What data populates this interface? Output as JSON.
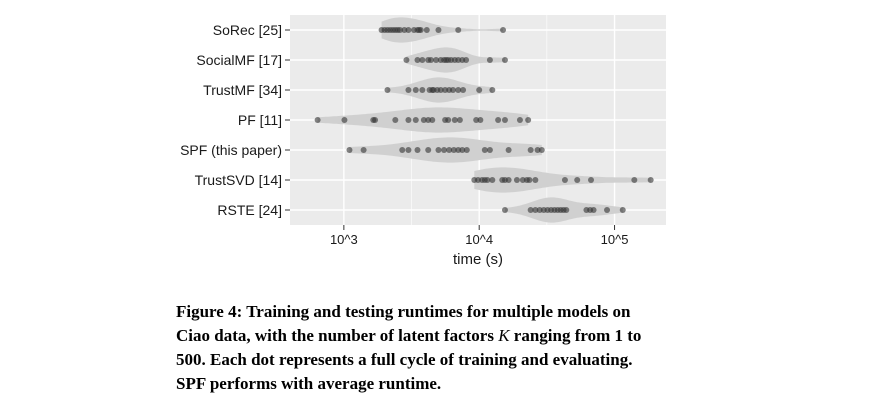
{
  "chart_data": {
    "type": "scatter",
    "xlabel": "time (s)",
    "x_scale": "log",
    "xlim": [
      400,
      240000
    ],
    "x_ticks": [
      {
        "value": 1000,
        "label": "10^3"
      },
      {
        "value": 10000,
        "label": "10^4"
      },
      {
        "value": 100000,
        "label": "10^5"
      }
    ],
    "grid": true,
    "background": "#ebebeb",
    "violin_color": "#d0d0d0",
    "point_color": "#333333",
    "categories": [
      "SoRec [25]",
      "SocialMF [17]",
      "TrustMF [34]",
      "PF [11]",
      "SPF (this paper)",
      "TrustSVD [14]",
      "RSTE [24]"
    ],
    "series": [
      {
        "category": "SoRec [25]",
        "values": [
          1900,
          2000,
          2100,
          2200,
          2300,
          2400,
          2500,
          2600,
          2800,
          3000,
          3300,
          3500,
          3600,
          3700,
          4100,
          5000,
          7000,
          15000
        ]
      },
      {
        "category": "SocialMF [17]",
        "values": [
          2900,
          3500,
          3800,
          4200,
          4400,
          4800,
          5200,
          5500,
          5700,
          5900,
          6200,
          6600,
          7000,
          7500,
          8000,
          12000,
          15500
        ]
      },
      {
        "category": "TrustMF [34]",
        "values": [
          2100,
          3000,
          3400,
          3800,
          4300,
          4500,
          4600,
          4900,
          5200,
          5600,
          6000,
          6400,
          7000,
          7600,
          10000,
          12500
        ]
      },
      {
        "category": "PF [11]",
        "values": [
          640,
          1010,
          1650,
          1700,
          2400,
          3000,
          3400,
          3900,
          4200,
          4500,
          5600,
          5900,
          6600,
          7200,
          9500,
          10200,
          13800,
          15500,
          20000,
          23000
        ]
      },
      {
        "category": "SPF (this paper)",
        "values": [
          1100,
          1400,
          2700,
          3000,
          3500,
          4200,
          5000,
          5500,
          6000,
          6500,
          7000,
          7500,
          8100,
          11000,
          12000,
          16500,
          24000,
          27000,
          29000
        ]
      },
      {
        "category": "TrustSVD [14]",
        "values": [
          9200,
          9800,
          10500,
          11000,
          11500,
          12500,
          14800,
          15500,
          16500,
          19000,
          21000,
          22500,
          23500,
          26000,
          43000,
          53000,
          67000,
          140000,
          185000
        ]
      },
      {
        "category": "RSTE [24]",
        "values": [
          15500,
          24000,
          26000,
          28000,
          30000,
          32000,
          34000,
          36000,
          38000,
          40000,
          42000,
          44000,
          62000,
          66000,
          70000,
          88000,
          115000
        ]
      }
    ]
  },
  "caption": {
    "line1": "Figure 4:  Training and testing runtimes for multiple models on",
    "line2_a": "Ciao data, with the number of latent factors ",
    "line2_math": "K",
    "line2_b": " ranging from 1 to",
    "line3": "500.  Each dot represents a full cycle of training and evaluating.",
    "line4": "SPF performs with average runtime."
  }
}
